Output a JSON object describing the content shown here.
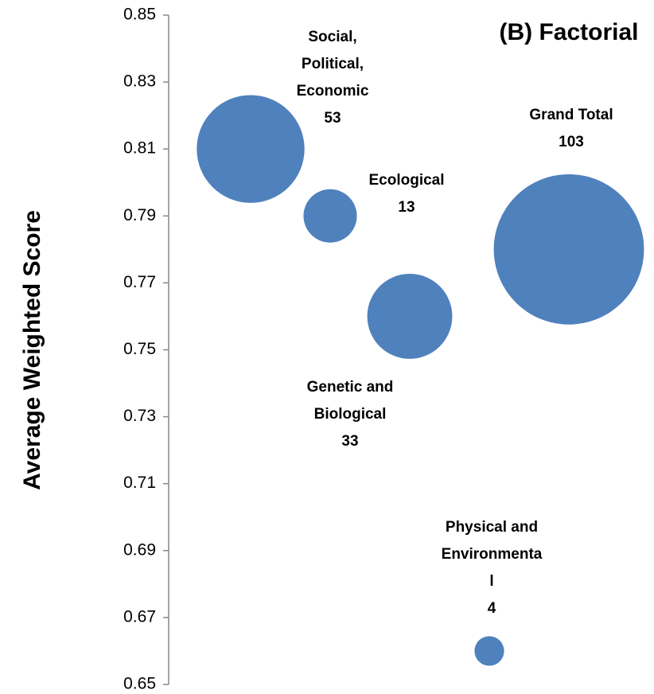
{
  "chart_data": {
    "type": "bubble",
    "title": "(B) Factorial",
    "y_label": "Average Weighted Score",
    "ylim": [
      0.65,
      0.85
    ],
    "yticks": [
      0.65,
      0.67,
      0.69,
      0.71,
      0.73,
      0.75,
      0.77,
      0.79,
      0.81,
      0.83,
      0.85
    ],
    "xlim": [
      0,
      6
    ],
    "series": [
      {
        "color": "#4f81bd",
        "names": [
          [
            "Social,",
            "Political,",
            "Economic"
          ],
          [
            "Ecological"
          ],
          [
            "Genetic and",
            "Biological"
          ],
          [
            "Physical and",
            "Environmenta",
            "l"
          ],
          [
            "Grand Total"
          ]
        ],
        "x": [
          1,
          2,
          3,
          4,
          5
        ],
        "values": [
          0.81,
          0.79,
          0.76,
          0.66,
          0.78
        ],
        "sizes": [
          53,
          13,
          33,
          4,
          103
        ]
      }
    ]
  }
}
